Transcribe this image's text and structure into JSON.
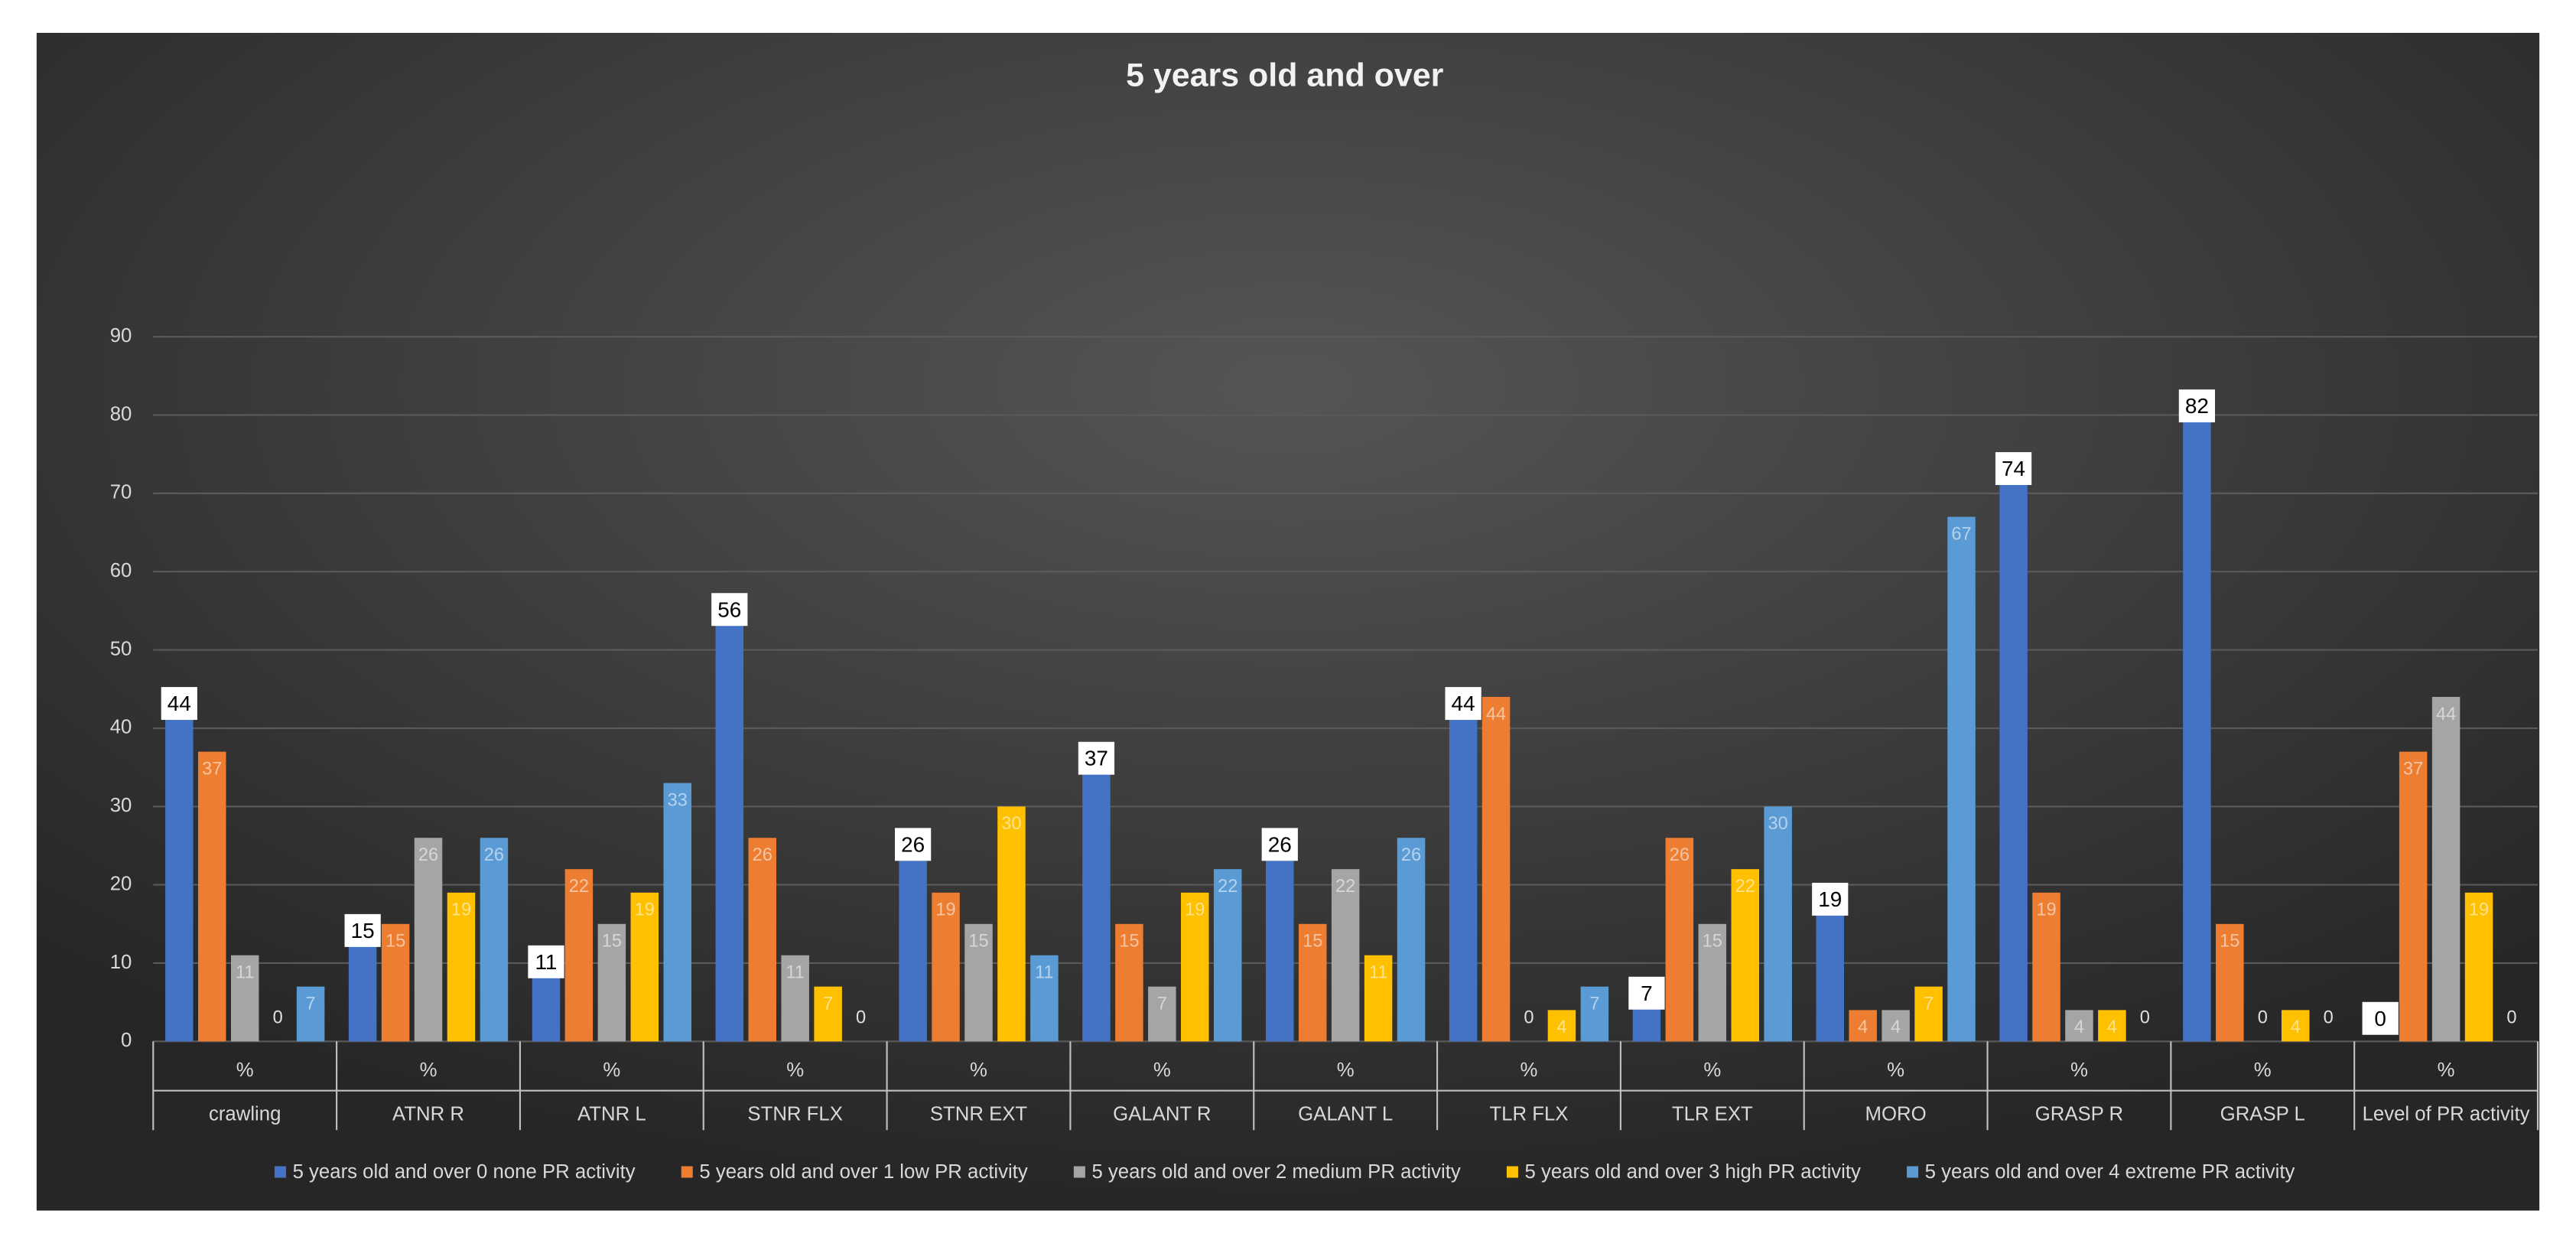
{
  "chart_data": {
    "type": "bar",
    "title": "5 years old and over",
    "categories": [
      "crawling",
      "ATNR R",
      "ATNR L",
      "STNR FLX",
      "STNR EXT",
      "GALANT R",
      "GALANT L",
      "TLR FLX",
      "TLR EXT",
      "MORO",
      "GRASP R",
      "GRASP L",
      "Level of PR activity"
    ],
    "category_units": [
      "%",
      "%",
      "%",
      "%",
      "%",
      "%",
      "%",
      "%",
      "%",
      "%",
      "%",
      "%",
      "%"
    ],
    "series": [
      {
        "name": "5 years old and over 0 none PR activity",
        "color": "#4472c4",
        "values": [
          44,
          15,
          11,
          56,
          26,
          37,
          26,
          44,
          7,
          19,
          74,
          82,
          0
        ]
      },
      {
        "name": "5 years old and over 1 low PR activity",
        "color": "#ed7d31",
        "values": [
          37,
          15,
          22,
          26,
          19,
          15,
          15,
          44,
          26,
          4,
          19,
          15,
          37
        ]
      },
      {
        "name": "5 years old and over 2 medium PR activity",
        "color": "#a5a5a5",
        "values": [
          11,
          26,
          15,
          11,
          15,
          7,
          22,
          0,
          15,
          4,
          4,
          0,
          44
        ]
      },
      {
        "name": "5 years old and over 3 high PR activity",
        "color": "#ffc000",
        "values": [
          0,
          19,
          19,
          7,
          30,
          19,
          11,
          4,
          22,
          7,
          4,
          4,
          19
        ]
      },
      {
        "name": "5 years old and over 4 extreme PR activity",
        "color": "#5b9bd5",
        "values": [
          7,
          26,
          33,
          0,
          11,
          22,
          26,
          7,
          30,
          67,
          0,
          0,
          0
        ]
      }
    ],
    "ylim": [
      0,
      90
    ],
    "yticks": [
      0,
      10,
      20,
      30,
      40,
      50,
      60,
      70,
      80,
      90
    ],
    "grid": true,
    "legend": "bottom"
  }
}
